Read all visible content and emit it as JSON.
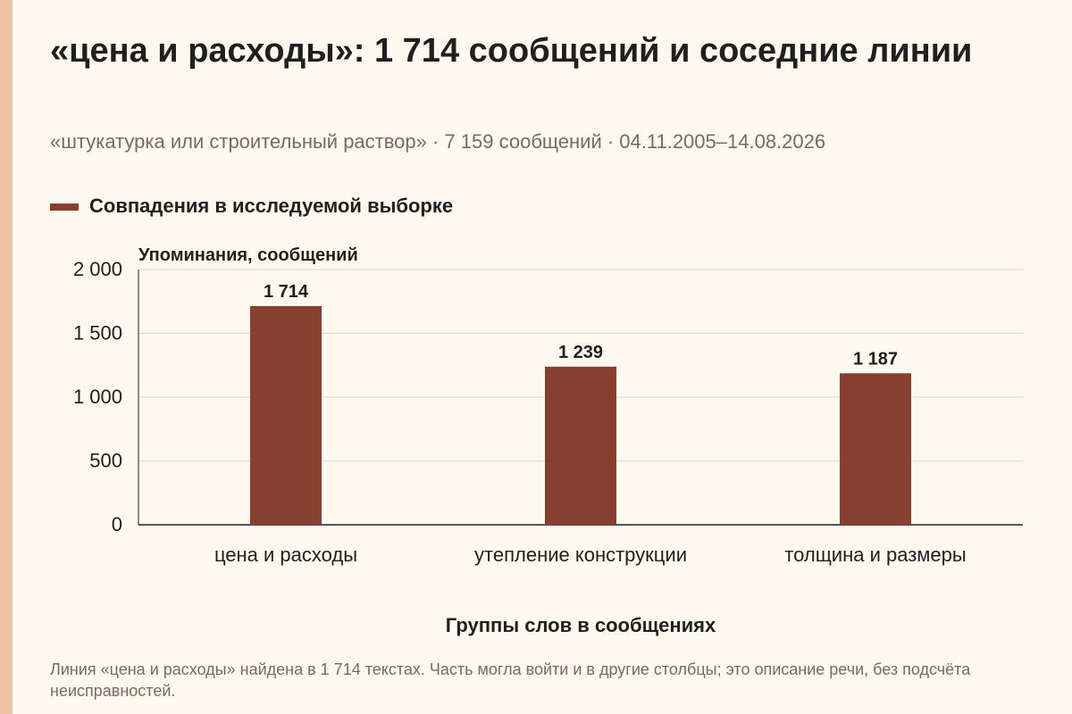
{
  "title": "«цена и расходы»: 1 714 сообщений и соседние линии",
  "subtitle": "«штукатурка или строительный раствор» · 7 159 сообщений · 04.11.2005–14.08.2026",
  "footnote": "Линия «цена и расходы» найдена в 1 714 текстах. Часть могла войти и в другие столбцы; это описание речи, без подсчёта неисправностей.",
  "colors": {
    "bar": "#873f2f",
    "accent": "#efc1a6",
    "grid": "#dcd6cc"
  },
  "chart_data": {
    "type": "bar",
    "categories": [
      "цена и расходы",
      "утепление конструкции",
      "толщина и размеры"
    ],
    "series": [
      {
        "name": "Совпадения в исследуемой выборке",
        "values": [
          1714,
          1239,
          1187
        ]
      }
    ],
    "value_labels": [
      "1 714",
      "1 239",
      "1 187"
    ],
    "ylabel": "Упоминания, сообщений",
    "xlabel": "Группы слов в сообщениях",
    "ylim": [
      0,
      2000
    ],
    "yticks": [
      0,
      500,
      1000,
      1500,
      2000
    ],
    "ytick_labels": [
      "0",
      "500",
      "1 000",
      "1 500",
      "2 000"
    ],
    "grid": true,
    "legend_position": "top-left"
  }
}
